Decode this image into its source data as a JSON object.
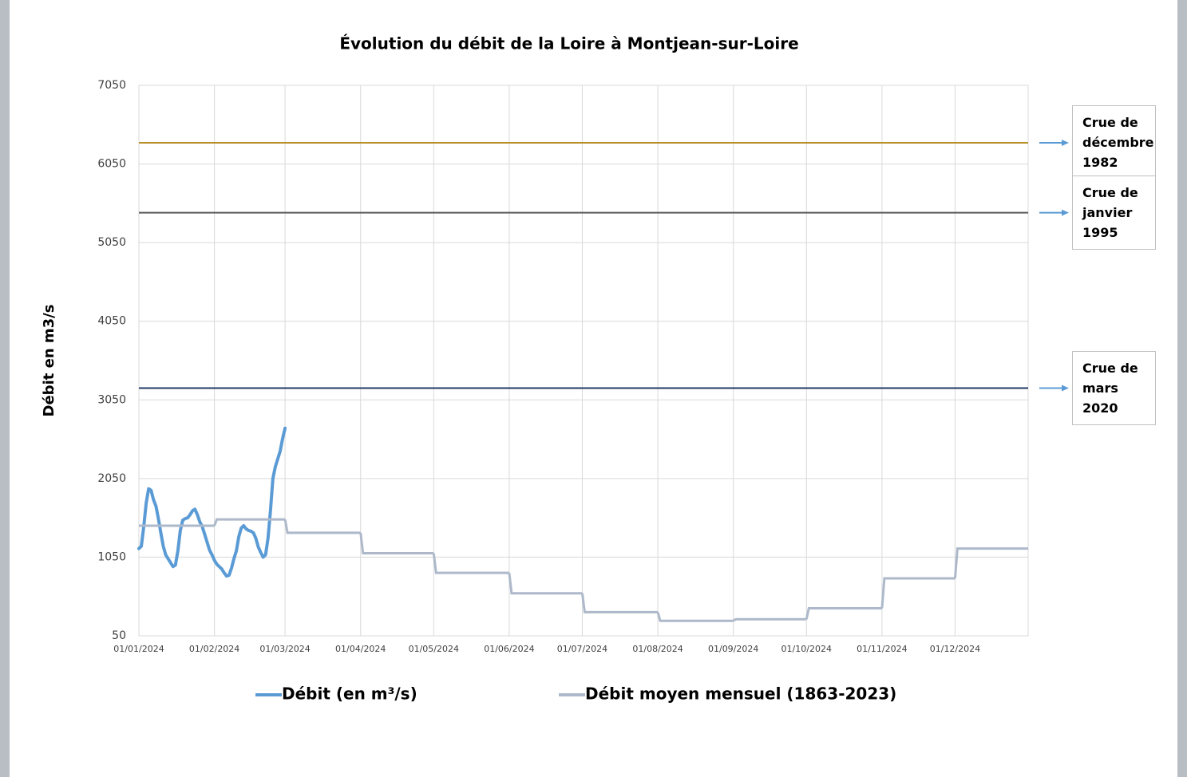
{
  "chart_data": {
    "type": "line",
    "title": "Évolution du débit de la Loire à Montjean-sur-Loire",
    "y_label": "Débit en m3/s",
    "ylim": [
      50,
      7050
    ],
    "yticks": [
      50,
      1050,
      2050,
      3050,
      4050,
      5050,
      6050,
      7050
    ],
    "xlim": [
      "01/01/2024",
      "31/12/2024"
    ],
    "xticks": [
      "01/01/2024",
      "01/02/2024",
      "01/03/2024",
      "01/04/2024",
      "01/05/2024",
      "01/06/2024",
      "01/07/2024",
      "01/08/2024",
      "01/09/2024",
      "01/10/2024",
      "01/11/2024",
      "01/12/2024"
    ],
    "grid": true,
    "legend": "bottom",
    "series": [
      {
        "name": "Débit (en m³/s)",
        "color": "#5b9bd5",
        "step": false,
        "x": [
          "01/01/2024",
          "02/01/2024",
          "03/01/2024",
          "04/01/2024",
          "05/01/2024",
          "06/01/2024",
          "07/01/2024",
          "08/01/2024",
          "09/01/2024",
          "10/01/2024",
          "11/01/2024",
          "12/01/2024",
          "13/01/2024",
          "14/01/2024",
          "15/01/2024",
          "16/01/2024",
          "17/01/2024",
          "18/01/2024",
          "19/01/2024",
          "20/01/2024",
          "21/01/2024",
          "22/01/2024",
          "23/01/2024",
          "24/01/2024",
          "25/01/2024",
          "26/01/2024",
          "27/01/2024",
          "28/01/2024",
          "29/01/2024",
          "30/01/2024",
          "31/01/2024",
          "01/02/2024",
          "02/02/2024",
          "03/02/2024",
          "04/02/2024",
          "05/02/2024",
          "06/02/2024",
          "07/02/2024",
          "08/02/2024",
          "09/02/2024",
          "10/02/2024",
          "11/02/2024",
          "12/02/2024",
          "13/02/2024",
          "14/02/2024",
          "15/02/2024",
          "16/02/2024",
          "17/02/2024",
          "18/02/2024",
          "19/02/2024",
          "20/02/2024",
          "21/02/2024",
          "22/02/2024",
          "23/02/2024",
          "24/02/2024",
          "25/02/2024",
          "26/02/2024",
          "27/02/2024",
          "28/02/2024",
          "29/02/2024",
          "01/03/2024"
        ],
        "values": [
          1160,
          1190,
          1440,
          1740,
          1920,
          1900,
          1780,
          1700,
          1540,
          1360,
          1190,
          1080,
          1030,
          980,
          930,
          950,
          1130,
          1390,
          1520,
          1540,
          1550,
          1590,
          1640,
          1660,
          1590,
          1500,
          1440,
          1340,
          1240,
          1140,
          1080,
          1010,
          960,
          930,
          900,
          850,
          810,
          820,
          910,
          1030,
          1130,
          1310,
          1420,
          1450,
          1410,
          1390,
          1380,
          1360,
          1290,
          1180,
          1110,
          1050,
          1080,
          1290,
          1640,
          2050,
          2200,
          2300,
          2400,
          2560,
          2690
        ]
      },
      {
        "name": "Débit moyen mensuel (1863-2023)",
        "color": "#adb9ca",
        "step": true,
        "x": [
          "01/01/2024",
          "01/02/2024",
          "01/03/2024",
          "01/04/2024",
          "01/05/2024",
          "01/06/2024",
          "01/07/2024",
          "01/08/2024",
          "01/09/2024",
          "01/10/2024",
          "01/11/2024",
          "01/12/2024"
        ],
        "values": [
          1450,
          1530,
          1360,
          1100,
          850,
          590,
          350,
          240,
          260,
          400,
          780,
          1160
        ]
      }
    ],
    "reference_lines": [
      {
        "label": "Crue de décembre 1982",
        "value": 6320,
        "color": "#b8902a"
      },
      {
        "label": "Crue de janvier 1995",
        "value": 5430,
        "color": "#595959"
      },
      {
        "label": "Crue de mars 2020",
        "value": 3200,
        "color": "#203864"
      }
    ]
  }
}
